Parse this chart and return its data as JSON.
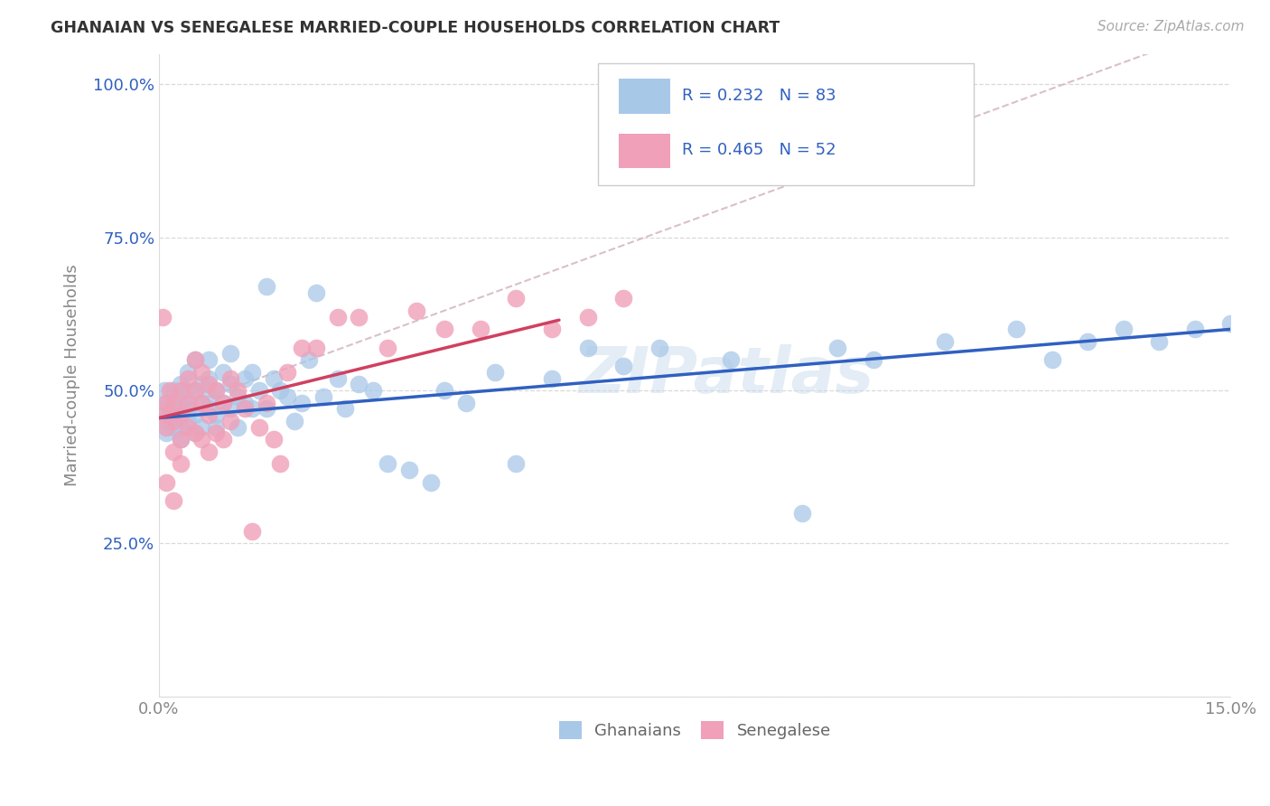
{
  "title": "GHANAIAN VS SENEGALESE MARRIED-COUPLE HOUSEHOLDS CORRELATION CHART",
  "source": "Source: ZipAtlas.com",
  "ylabel_label": "Married-couple Households",
  "xlim": [
    0.0,
    0.15
  ],
  "ylim": [
    0.0,
    1.05
  ],
  "xtick_positions": [
    0.0,
    0.03,
    0.06,
    0.09,
    0.12,
    0.15
  ],
  "xticklabels": [
    "0.0%",
    "",
    "",
    "",
    "",
    "15.0%"
  ],
  "ytick_positions": [
    0.0,
    0.25,
    0.5,
    0.75,
    1.0
  ],
  "yticklabels": [
    "",
    "25.0%",
    "50.0%",
    "75.0%",
    "100.0%"
  ],
  "ghanaian_color": "#a8c8e8",
  "senegalese_color": "#f0a0b8",
  "trend_ghana_color": "#3060c0",
  "trend_senegal_color": "#d04060",
  "diagonal_color": "#d0b0c0",
  "R_ghana": 0.232,
  "N_ghana": 83,
  "R_senegal": 0.465,
  "N_senegal": 52,
  "accent_color": "#3060c0",
  "watermark": "ZIPatlas",
  "background_color": "#ffffff",
  "grid_color": "#d0d0d0",
  "ghana_x": [
    0.0005,
    0.0008,
    0.001,
    0.001,
    0.001,
    0.0015,
    0.002,
    0.002,
    0.002,
    0.0025,
    0.003,
    0.003,
    0.003,
    0.003,
    0.003,
    0.0035,
    0.004,
    0.004,
    0.004,
    0.004,
    0.005,
    0.005,
    0.005,
    0.005,
    0.006,
    0.006,
    0.006,
    0.007,
    0.007,
    0.007,
    0.007,
    0.008,
    0.008,
    0.008,
    0.009,
    0.009,
    0.01,
    0.01,
    0.01,
    0.011,
    0.011,
    0.012,
    0.012,
    0.013,
    0.013,
    0.014,
    0.015,
    0.015,
    0.016,
    0.017,
    0.018,
    0.019,
    0.02,
    0.021,
    0.022,
    0.023,
    0.025,
    0.026,
    0.028,
    0.03,
    0.032,
    0.035,
    0.038,
    0.04,
    0.043,
    0.047,
    0.05,
    0.055,
    0.06,
    0.065,
    0.07,
    0.08,
    0.09,
    0.095,
    0.1,
    0.11,
    0.12,
    0.125,
    0.13,
    0.135,
    0.14,
    0.145,
    0.15
  ],
  "ghana_y": [
    0.47,
    0.5,
    0.48,
    0.45,
    0.43,
    0.46,
    0.5,
    0.47,
    0.44,
    0.49,
    0.46,
    0.48,
    0.51,
    0.44,
    0.42,
    0.5,
    0.47,
    0.45,
    0.53,
    0.48,
    0.46,
    0.5,
    0.55,
    0.43,
    0.48,
    0.51,
    0.44,
    0.47,
    0.52,
    0.49,
    0.55,
    0.46,
    0.5,
    0.44,
    0.48,
    0.53,
    0.47,
    0.51,
    0.56,
    0.49,
    0.44,
    0.52,
    0.48,
    0.47,
    0.53,
    0.5,
    0.67,
    0.47,
    0.52,
    0.5,
    0.49,
    0.45,
    0.48,
    0.55,
    0.66,
    0.49,
    0.52,
    0.47,
    0.51,
    0.5,
    0.38,
    0.37,
    0.35,
    0.5,
    0.48,
    0.53,
    0.38,
    0.52,
    0.57,
    0.54,
    0.57,
    0.55,
    0.3,
    0.57,
    0.55,
    0.58,
    0.6,
    0.55,
    0.58,
    0.6,
    0.58,
    0.6,
    0.61
  ],
  "senegal_x": [
    0.0005,
    0.0008,
    0.001,
    0.001,
    0.001,
    0.0015,
    0.002,
    0.002,
    0.002,
    0.002,
    0.003,
    0.003,
    0.003,
    0.003,
    0.004,
    0.004,
    0.004,
    0.005,
    0.005,
    0.005,
    0.006,
    0.006,
    0.006,
    0.007,
    0.007,
    0.007,
    0.008,
    0.008,
    0.009,
    0.009,
    0.01,
    0.01,
    0.011,
    0.012,
    0.013,
    0.014,
    0.015,
    0.016,
    0.017,
    0.018,
    0.02,
    0.022,
    0.025,
    0.028,
    0.032,
    0.036,
    0.04,
    0.045,
    0.05,
    0.055,
    0.06,
    0.065
  ],
  "senegal_y": [
    0.62,
    0.46,
    0.48,
    0.44,
    0.35,
    0.5,
    0.48,
    0.45,
    0.4,
    0.32,
    0.5,
    0.46,
    0.42,
    0.38,
    0.52,
    0.48,
    0.44,
    0.55,
    0.5,
    0.43,
    0.53,
    0.48,
    0.42,
    0.51,
    0.46,
    0.4,
    0.5,
    0.43,
    0.48,
    0.42,
    0.52,
    0.45,
    0.5,
    0.47,
    0.27,
    0.44,
    0.48,
    0.42,
    0.38,
    0.53,
    0.57,
    0.57,
    0.62,
    0.62,
    0.57,
    0.63,
    0.6,
    0.6,
    0.65,
    0.6,
    0.62,
    0.65
  ]
}
